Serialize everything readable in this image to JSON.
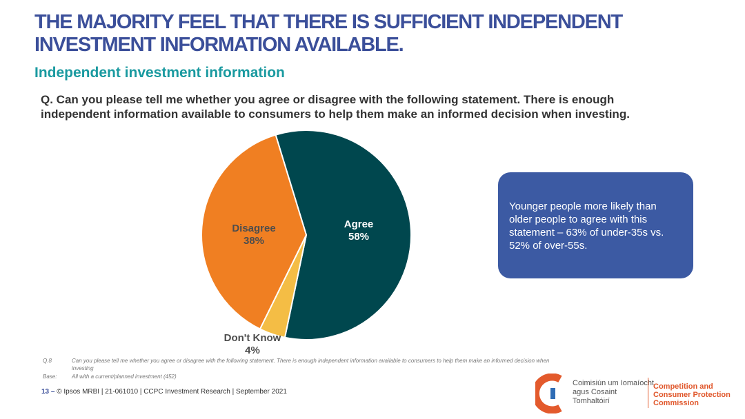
{
  "header": {
    "title": "THE MAJORITY FEEL THAT THERE IS SUFFICIENT INDEPENDENT INVESTMENT INFORMATION AVAILABLE.",
    "subtitle": "Independent investment information",
    "question": "Q. Can you please tell me whether you agree or disagree with the following  statement. There is enough independent information available to consumers to help them make an informed decision when investing."
  },
  "chart_data": {
    "type": "pie",
    "slices": [
      {
        "label": "Agree",
        "value": 58,
        "value_label": "58%",
        "color": "#00474e",
        "label_color": "#ffffff"
      },
      {
        "label": "Don't Know",
        "value": 4,
        "value_label": "4%",
        "color": "#f4bd45",
        "label_color": "#4d4d4d"
      },
      {
        "label": "Disagree",
        "value": 38,
        "value_label": "38%",
        "color": "#f07f22",
        "label_color": "#4d4d4d"
      }
    ]
  },
  "callout": {
    "text": "Younger people more likely than older people to agree with this statement – 63% of under-35s vs. 52% of over-55s."
  },
  "footnotes": [
    {
      "key": "Q.8",
      "text": "Can you please tell me whether you agree or disagree with the following statement. There is enough independent information available to consumers to help them make an informed decision when investing"
    },
    {
      "key": "Base:",
      "text": "All with a current/planned investment (452)"
    }
  ],
  "footer": {
    "page_number": "13",
    "dash": "–",
    "text": "© Ipsos MRBI | 21-061010 | CCPC Investment Research | September 2021"
  },
  "logo": {
    "irish": "Coimisiún um Iomaíocht agus Cosaint Tomhaltóirí",
    "english": "Competition and Consumer Protection Commission",
    "colors": {
      "orange": "#e35a2c",
      "blue": "#2f6db5"
    }
  },
  "colors": {
    "title": "#3b4f9a",
    "subtitle": "#1a9aa0",
    "callout_bg": "#3c5aa3"
  }
}
